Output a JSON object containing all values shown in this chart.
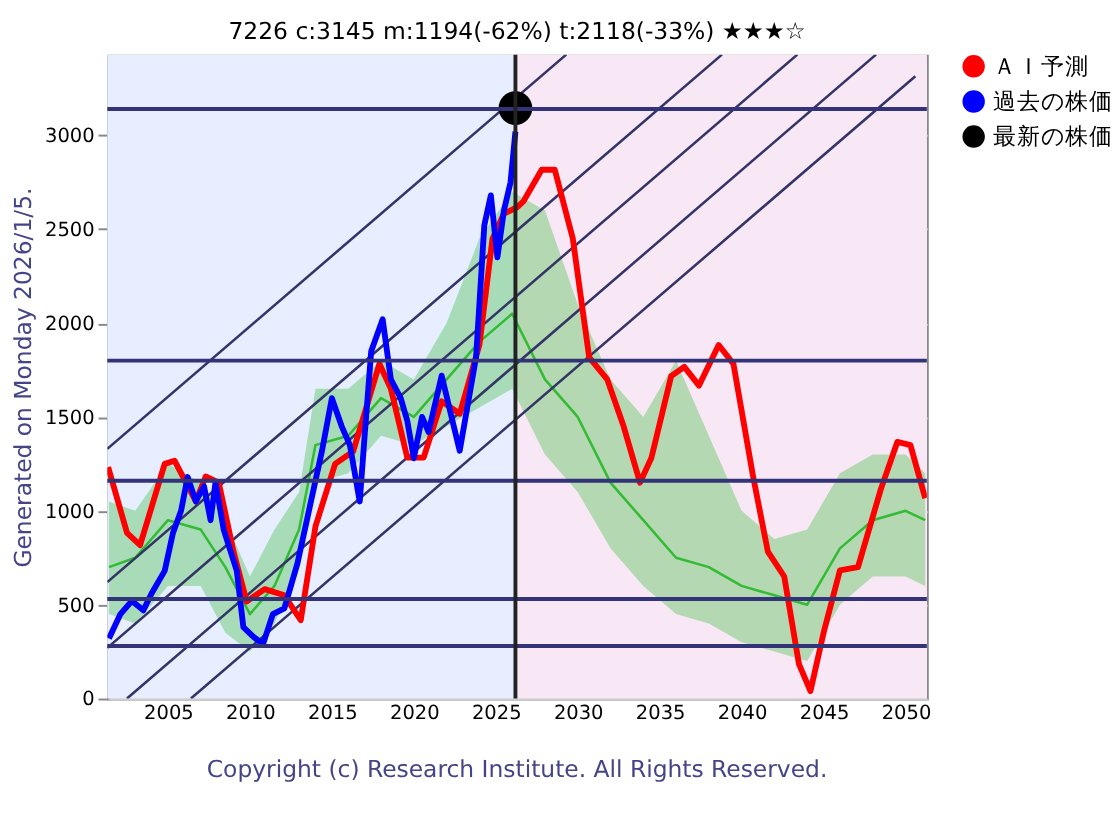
{
  "chart_data": {
    "type": "line",
    "title": "7226   c:3145   m:1194(-62%)   t:2118(-33%)   ★★★☆",
    "ylabel": "Generated on Monday 2026/1/5.",
    "annotations": [
      "Copyright (c) Research Institute. All Rights Reserved."
    ],
    "xlim": [
      2001.3,
      2051.3
    ],
    "xticks": [
      2005,
      2010,
      2015,
      2020,
      2025,
      2030,
      2035,
      2040,
      2045,
      2050
    ],
    "ylim": [
      0,
      3430
    ],
    "yticks": [
      0,
      500,
      1000,
      1500,
      2000,
      2500,
      3000
    ],
    "grid": true,
    "legend": "right",
    "line_style": "solid",
    "bands": [
      {
        "axis": "x",
        "from": 2001.3,
        "to": 2026.2,
        "color": "#e6eeff"
      },
      {
        "axis": "x",
        "from": 2026.2,
        "to": 2051.3,
        "color": "#f8e8f6"
      }
    ],
    "ref_lines": [
      {
        "axis": "y",
        "value": 3140,
        "color": "#333377"
      },
      {
        "axis": "y",
        "value": 1800,
        "color": "#333377"
      },
      {
        "axis": "y",
        "value": 1160,
        "color": "#333377"
      },
      {
        "axis": "y",
        "value": 530,
        "color": "#333377"
      },
      {
        "axis": "y",
        "value": 280,
        "color": "#333377"
      },
      {
        "axis": "x",
        "value": 2026.2,
        "color": "#222222"
      }
    ],
    "series": [
      {
        "color": "#33bb33",
        "x": [
          2001.4,
          2003,
          2005,
          2007,
          2008.5,
          2010,
          2011.5,
          2013,
          2014,
          2016,
          2018,
          2020,
          2022,
          2024,
          2026,
          2028,
          2030,
          2032,
          2034,
          2036,
          2038,
          2040,
          2042,
          2044,
          2046,
          2048,
          2050,
          2051.2
        ],
        "values": [
          700,
          750,
          950,
          900,
          700,
          450,
          600,
          900,
          1350,
          1400,
          1600,
          1500,
          1700,
          1900,
          2050,
          1700,
          1500,
          1150,
          950,
          750,
          700,
          600,
          550,
          500,
          800,
          950,
          1000,
          950
        ],
        "lower": [
          450,
          400,
          600,
          600,
          350,
          250,
          400,
          700,
          1150,
          1200,
          1400,
          1350,
          1450,
          1550,
          1650,
          1300,
          1100,
          800,
          600,
          450,
          400,
          300,
          250,
          200,
          500,
          650,
          650,
          600
        ],
        "upper": [
          1050,
          1000,
          1250,
          1150,
          950,
          650,
          900,
          1100,
          1650,
          1650,
          1800,
          1700,
          2000,
          2450,
          2700,
          2600,
          2100,
          1700,
          1500,
          1800,
          1400,
          1000,
          850,
          900,
          1200,
          1300,
          1300,
          1200
        ]
      },
      {
        "color": "#333366",
        "x": [
          2001.3,
          2029.3
        ],
        "values": [
          1330,
          3430
        ]
      },
      {
        "color": "#333366",
        "x": [
          2001.3,
          2038.8
        ],
        "values": [
          620,
          3430
        ]
      },
      {
        "color": "#333366",
        "x": [
          2001.3,
          2043.4
        ],
        "values": [
          270,
          3430
        ]
      },
      {
        "color": "#333366",
        "x": [
          2002.5,
          2048.2
        ],
        "values": [
          0,
          3430
        ]
      },
      {
        "color": "#333366",
        "x": [
          2006.4,
          2050.6
        ],
        "values": [
          0,
          3315
        ]
      },
      {
        "name": "ＡＩ予測",
        "color": "#ff0000",
        "x": [
          2001.35,
          2002.5,
          2003.3,
          2004.8,
          2005.4,
          2006.7,
          2007.3,
          2008.1,
          2009.0,
          2009.8,
          2010.9,
          2012.1,
          2013.1,
          2014.0,
          2015.2,
          2016.3,
          2017.9,
          2018.6,
          2019.6,
          2020.6,
          2021.7,
          2022.8,
          2024.0,
          2024.8,
          2025.5,
          2026.3,
          2026.7,
          2027.8,
          2028.6,
          2029.7,
          2030.7,
          2031.8,
          2032.8,
          2033.8,
          2034.5,
          2035.7,
          2036.5,
          2037.4,
          2038.6,
          2039.5,
          2040.7,
          2041.6,
          2042.6,
          2043.5,
          2044.2,
          2045.0,
          2046.0,
          2047.1,
          2048.5,
          2049.5,
          2050.3,
          2051.2
        ],
        "values": [
          1233,
          883,
          817,
          1250,
          1267,
          1050,
          1183,
          1150,
          783,
          517,
          583,
          550,
          417,
          917,
          1250,
          1317,
          1783,
          1650,
          1283,
          1283,
          1583,
          1517,
          1883,
          2450,
          2583,
          2617,
          2650,
          2817,
          2817,
          2450,
          1817,
          1700,
          1450,
          1150,
          1283,
          1717,
          1767,
          1667,
          1883,
          1783,
          1183,
          783,
          650,
          183,
          40,
          350,
          683,
          700,
          1117,
          1367,
          1350,
          1067
        ]
      },
      {
        "name": "過去の株価",
        "color": "#0000ff",
        "x": [
          2001.4,
          2002.1,
          2002.8,
          2003.5,
          2004.0,
          2004.8,
          2005.3,
          2005.8,
          2006.2,
          2006.7,
          2007.2,
          2007.6,
          2007.9,
          2008.4,
          2009.2,
          2009.6,
          2010.2,
          2010.8,
          2011.4,
          2012.1,
          2012.9,
          2013.6,
          2014.4,
          2015.0,
          2015.6,
          2016.1,
          2016.7,
          2017.0,
          2017.4,
          2018.1,
          2018.6,
          2019.2,
          2019.6,
          2020.0,
          2020.5,
          2020.9,
          2021.7,
          2022.3,
          2022.8,
          2023.2,
          2023.8,
          2024.3,
          2024.7,
          2025.1,
          2025.5,
          2025.9,
          2026.2
        ],
        "values": [
          320,
          450,
          520,
          470,
          560,
          680,
          880,
          1000,
          1180,
          1050,
          1130,
          950,
          1150,
          900,
          680,
          380,
          330,
          290,
          450,
          480,
          720,
          1000,
          1320,
          1600,
          1450,
          1350,
          1050,
          1400,
          1850,
          2020,
          1700,
          1600,
          1480,
          1280,
          1500,
          1420,
          1720,
          1500,
          1320,
          1520,
          1820,
          2520,
          2680,
          2350,
          2600,
          2750,
          3020
        ]
      },
      {
        "type": "scatter",
        "name": "最新の株価",
        "color": "#000000",
        "x": [
          2026.2
        ],
        "values": [
          3145
        ]
      }
    ]
  }
}
